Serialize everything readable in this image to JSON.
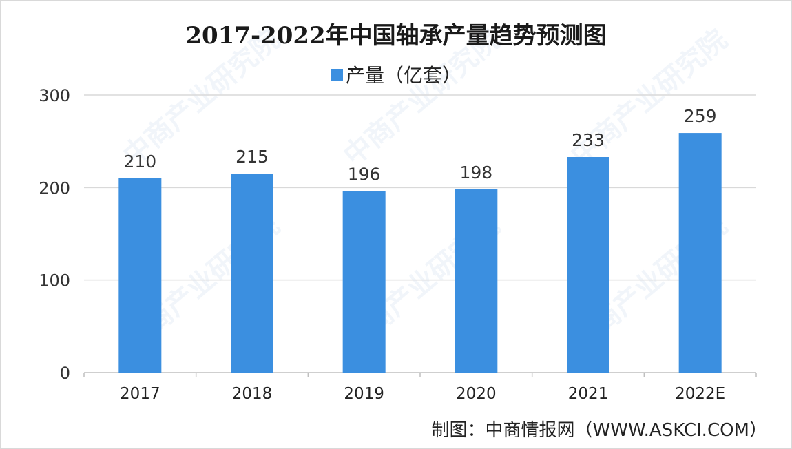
{
  "chart_data": {
    "type": "bar",
    "title": "2017-2022年中国轴承产量趋势预测图",
    "categories": [
      "2017",
      "2018",
      "2019",
      "2020",
      "2021",
      "2022E"
    ],
    "series": [
      {
        "name": "产量（亿套）",
        "values": [
          210,
          215,
          196,
          198,
          233,
          259
        ],
        "color": "#3b8fe0"
      }
    ],
    "data_labels": [
      "210",
      "215",
      "196",
      "198",
      "233",
      "259"
    ],
    "ylim": [
      0,
      300
    ],
    "yticks": [
      0,
      100,
      200,
      300
    ],
    "ytick_labels": [
      "0",
      "100",
      "200",
      "300"
    ],
    "grid": true,
    "legend_position": "top-center"
  },
  "source": "制图：中商情报网（WWW.ASKCI.COM）",
  "watermark": "中商产业研究院",
  "colors": {
    "bar": "#3b8fe0",
    "grid": "#d9d9d9",
    "axis": "#bfbfbf"
  }
}
